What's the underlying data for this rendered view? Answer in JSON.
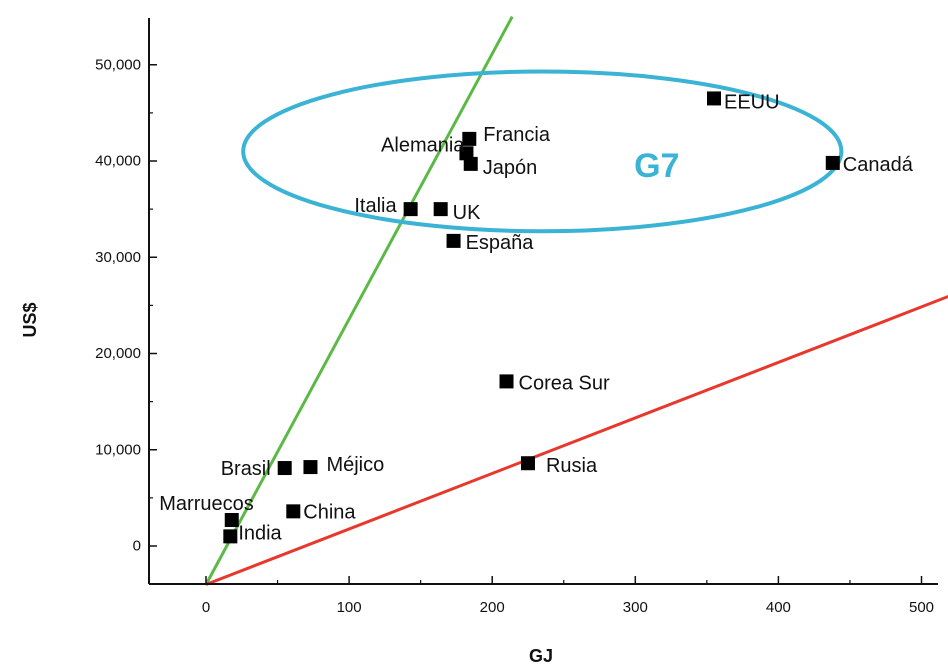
{
  "chart_data": {
    "type": "scatter",
    "xlabel": "GJ",
    "ylabel": "US$",
    "xlim": [
      -40,
      510
    ],
    "ylim": [
      -4000,
      55000
    ],
    "x_ticks": [
      0,
      100,
      200,
      300,
      400,
      500
    ],
    "x_tick_labels": [
      "0",
      "100",
      "200",
      "300",
      "400",
      "500"
    ],
    "y_ticks": [
      0,
      10000,
      20000,
      30000,
      40000,
      50000
    ],
    "y_tick_labels": [
      "0",
      "10,000",
      "20,000",
      "30,000",
      "40,000",
      "50,000"
    ],
    "grid": false,
    "points": [
      {
        "label": "EEUU",
        "x": 355,
        "y": 46500
      },
      {
        "label": "Canadá",
        "x": 438,
        "y": 39800
      },
      {
        "label": "Francia",
        "x": 184,
        "y": 42300
      },
      {
        "label": "Alemania",
        "x": 182,
        "y": 40800
      },
      {
        "label": "Japón",
        "x": 185,
        "y": 39700
      },
      {
        "label": "Italia",
        "x": 143,
        "y": 35000
      },
      {
        "label": "UK",
        "x": 164,
        "y": 35000
      },
      {
        "label": "España",
        "x": 173,
        "y": 31700
      },
      {
        "label": "Corea Sur",
        "x": 210,
        "y": 17100
      },
      {
        "label": "Méjico",
        "x": 73,
        "y": 8200
      },
      {
        "label": "Brasil",
        "x": 55,
        "y": 8100
      },
      {
        "label": "Rusia",
        "x": 225,
        "y": 8600
      },
      {
        "label": "China",
        "x": 61,
        "y": 3600
      },
      {
        "label": "Marruecos",
        "x": 18,
        "y": 2700
      },
      {
        "label": "India",
        "x": 17,
        "y": 1000
      }
    ],
    "lines": [
      {
        "color": "#5cb946",
        "x": [
          0,
          214
        ],
        "y": [
          -4000,
          55000
        ]
      },
      {
        "color": "#e8372c",
        "x": [
          0,
          520
        ],
        "y": [
          -4000,
          26000
        ]
      }
    ],
    "annotations": [
      {
        "text": "G7",
        "color": "#3ab3d4",
        "cx": 235,
        "cy": 41000,
        "rx": 209,
        "ry": 8300,
        "text_x": 315,
        "text_y": 39500
      }
    ]
  }
}
